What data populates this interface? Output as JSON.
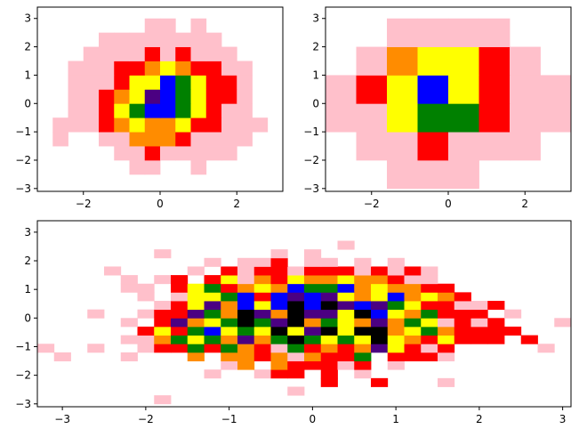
{
  "colors": {
    "map": [
      "#ffffff",
      "#ffc0cb",
      "#ff0000",
      "#ff8c00",
      "#ffff00",
      "#008000",
      "#0000ff",
      "#4b0082",
      "#000000"
    ]
  },
  "chart_data": [
    {
      "type": "heatmap",
      "title": "",
      "xlabel": "",
      "ylabel": "",
      "xlim": [
        -3.2,
        3.2
      ],
      "ylim": [
        -3.1,
        3.4
      ],
      "grid": false,
      "xticks": [
        -2,
        0,
        2
      ],
      "yticks": [
        -3,
        -2,
        -1,
        0,
        1,
        2,
        3
      ],
      "xtick_labels": [
        "−2",
        "0",
        "2"
      ],
      "ytick_labels": [
        "−3",
        "−2",
        "−1",
        "0",
        "1",
        "2",
        "3"
      ],
      "x_edges": [
        -3.2,
        -2.8,
        -2.4,
        -2.0,
        -1.6,
        -1.2,
        -0.8,
        -0.4,
        0.0,
        0.4,
        0.8,
        1.2,
        1.6,
        2.0,
        2.4,
        2.8,
        3.2
      ],
      "y_edges": [
        -3.0,
        -2.5,
        -2.0,
        -1.5,
        -1.0,
        -0.5,
        0.0,
        0.5,
        1.0,
        1.5,
        2.0,
        2.5,
        3.0,
        3.5
      ],
      "levels": [
        [
          0,
          0,
          0,
          0,
          0,
          0,
          0,
          0,
          0,
          0,
          0,
          0,
          0,
          0,
          0,
          0
        ],
        [
          0,
          0,
          0,
          0,
          0,
          0,
          1,
          1,
          0,
          0,
          1,
          0,
          0,
          0,
          0,
          0
        ],
        [
          0,
          0,
          0,
          0,
          0,
          1,
          1,
          2,
          1,
          1,
          1,
          1,
          1,
          0,
          0,
          0
        ],
        [
          0,
          1,
          0,
          0,
          1,
          1,
          3,
          3,
          3,
          2,
          1,
          1,
          1,
          1,
          0,
          0
        ],
        [
          0,
          1,
          1,
          1,
          2,
          3,
          4,
          3,
          3,
          4,
          2,
          2,
          1,
          1,
          1,
          0
        ],
        [
          0,
          0,
          1,
          1,
          2,
          4,
          5,
          6,
          6,
          5,
          4,
          2,
          1,
          1,
          0,
          0
        ],
        [
          0,
          0,
          1,
          1,
          2,
          3,
          4,
          7,
          6,
          5,
          4,
          2,
          2,
          1,
          0,
          0
        ],
        [
          0,
          0,
          1,
          1,
          1,
          2,
          4,
          4,
          6,
          5,
          4,
          2,
          2,
          1,
          0,
          0
        ],
        [
          0,
          0,
          1,
          1,
          1,
          2,
          2,
          3,
          4,
          3,
          2,
          2,
          1,
          1,
          0,
          0
        ],
        [
          0,
          0,
          0,
          1,
          1,
          1,
          1,
          2,
          1,
          2,
          1,
          1,
          1,
          0,
          0,
          0
        ],
        [
          0,
          0,
          0,
          0,
          1,
          1,
          1,
          1,
          1,
          1,
          1,
          1,
          0,
          0,
          0,
          0
        ],
        [
          0,
          0,
          0,
          0,
          0,
          0,
          0,
          1,
          1,
          0,
          1,
          0,
          0,
          0,
          0,
          0
        ],
        [
          0,
          0,
          0,
          0,
          0,
          0,
          0,
          0,
          0,
          0,
          0,
          0,
          0,
          0,
          0,
          0
        ]
      ]
    },
    {
      "type": "heatmap",
      "title": "",
      "xlabel": "",
      "ylabel": "",
      "xlim": [
        -3.2,
        3.2
      ],
      "ylim": [
        -3.1,
        3.4
      ],
      "grid": false,
      "xticks": [
        -2,
        0,
        2
      ],
      "yticks": [
        -3,
        -2,
        -1,
        0,
        1,
        2,
        3
      ],
      "xtick_labels": [
        "−2",
        "0",
        "2"
      ],
      "ytick_labels": [
        "−3",
        "−2",
        "−1",
        "0",
        "1",
        "2",
        "3"
      ],
      "x_edges": [
        -3.2,
        -2.4,
        -1.6,
        -0.8,
        0.0,
        0.8,
        1.6,
        2.4,
        3.2
      ],
      "y_edges": [
        -3.0,
        -2.0,
        -1.0,
        0.0,
        1.0,
        2.0,
        3.0
      ],
      "levels": [
        [
          0,
          0,
          1,
          1,
          1,
          0,
          0,
          0
        ],
        [
          0,
          1,
          1,
          2,
          1,
          1,
          1,
          0
        ],
        [
          1,
          1,
          4,
          5,
          5,
          2,
          1,
          1
        ],
        [
          1,
          2,
          4,
          6,
          4,
          2,
          1,
          1
        ],
        [
          0,
          1,
          3,
          4,
          4,
          2,
          1,
          0
        ],
        [
          0,
          0,
          1,
          1,
          1,
          1,
          0,
          0
        ]
      ]
    },
    {
      "type": "heatmap",
      "title": "",
      "xlabel": "",
      "ylabel": "",
      "xlim": [
        -3.3,
        3.1
      ],
      "ylim": [
        -3.1,
        3.4
      ],
      "grid": false,
      "xticks": [
        -3,
        -2,
        -1,
        0,
        1,
        2,
        3
      ],
      "yticks": [
        -3,
        -2,
        -1,
        0,
        1,
        2,
        3
      ],
      "xtick_labels": [
        "−3",
        "−2",
        "−1",
        "0",
        "1",
        "2",
        "3"
      ],
      "ytick_labels": [
        "−3",
        "−2",
        "−1",
        "0",
        "1",
        "2",
        "3"
      ],
      "x_edges": [
        -3.3,
        -3.1,
        -2.9,
        -2.7,
        -2.5,
        -2.3,
        -2.1,
        -1.9,
        -1.7,
        -1.5,
        -1.3,
        -1.1,
        -0.9,
        -0.7,
        -0.5,
        -0.3,
        -0.1,
        0.1,
        0.3,
        0.5,
        0.7,
        0.9,
        1.1,
        1.3,
        1.5,
        1.7,
        1.9,
        2.1,
        2.3,
        2.5,
        2.7,
        2.9,
        3.1
      ],
      "y_edges": [
        -3.0,
        -2.7,
        -2.4,
        -2.1,
        -1.8,
        -1.5,
        -1.2,
        -0.9,
        -0.6,
        -0.3,
        0.0,
        0.3,
        0.6,
        0.9,
        1.2,
        1.5,
        1.8,
        2.1,
        2.4,
        2.7,
        3.0,
        3.3
      ],
      "levels": [
        [
          0,
          0,
          0,
          0,
          0,
          0,
          0,
          1,
          0,
          0,
          0,
          0,
          0,
          0,
          0,
          0,
          0,
          0,
          0,
          0,
          0,
          0,
          0,
          0,
          0,
          0,
          0,
          0,
          0,
          0,
          0,
          0
        ],
        [
          0,
          0,
          0,
          0,
          0,
          0,
          0,
          0,
          0,
          0,
          0,
          0,
          0,
          0,
          0,
          1,
          0,
          0,
          0,
          0,
          0,
          0,
          0,
          0,
          0,
          0,
          0,
          0,
          0,
          0,
          0,
          0
        ],
        [
          0,
          0,
          0,
          0,
          0,
          0,
          0,
          0,
          0,
          0,
          0,
          0,
          0,
          0,
          0,
          0,
          0,
          2,
          0,
          0,
          2,
          0,
          0,
          0,
          1,
          0,
          0,
          0,
          0,
          0,
          0,
          0
        ],
        [
          0,
          0,
          0,
          0,
          0,
          0,
          0,
          0,
          0,
          0,
          1,
          0,
          0,
          1,
          2,
          2,
          0,
          2,
          0,
          1,
          0,
          0,
          0,
          0,
          0,
          0,
          0,
          0,
          0,
          0,
          0,
          0
        ],
        [
          0,
          0,
          0,
          0,
          0,
          0,
          0,
          0,
          0,
          0,
          0,
          1,
          3,
          0,
          3,
          2,
          2,
          2,
          1,
          2,
          0,
          1,
          0,
          0,
          0,
          0,
          0,
          0,
          0,
          0,
          0,
          0
        ],
        [
          0,
          1,
          0,
          0,
          0,
          1,
          0,
          0,
          0,
          3,
          0,
          3,
          3,
          2,
          3,
          1,
          3,
          2,
          2,
          5,
          0,
          2,
          2,
          2,
          1,
          0,
          0,
          0,
          0,
          0,
          0,
          0
        ],
        [
          1,
          0,
          0,
          1,
          0,
          0,
          1,
          2,
          2,
          5,
          2,
          5,
          3,
          2,
          1,
          5,
          2,
          3,
          2,
          3,
          7,
          4,
          2,
          1,
          2,
          0,
          0,
          0,
          0,
          0,
          1,
          0
        ],
        [
          0,
          0,
          0,
          0,
          0,
          1,
          1,
          3,
          5,
          4,
          5,
          3,
          7,
          3,
          5,
          8,
          5,
          4,
          5,
          4,
          8,
          4,
          3,
          2,
          4,
          2,
          2,
          2,
          0,
          2,
          0,
          0
        ],
        [
          0,
          0,
          0,
          0,
          0,
          0,
          2,
          4,
          2,
          5,
          6,
          4,
          5,
          4,
          8,
          4,
          7,
          8,
          4,
          8,
          8,
          3,
          4,
          5,
          3,
          2,
          2,
          2,
          2,
          0,
          0,
          0
        ],
        [
          0,
          0,
          0,
          0,
          0,
          1,
          0,
          2,
          7,
          3,
          4,
          5,
          8,
          5,
          7,
          8,
          3,
          5,
          4,
          3,
          7,
          3,
          5,
          4,
          1,
          2,
          1,
          2,
          0,
          0,
          0,
          1
        ],
        [
          0,
          0,
          0,
          1,
          0,
          0,
          1,
          2,
          2,
          7,
          5,
          3,
          8,
          7,
          3,
          8,
          7,
          7,
          4,
          8,
          6,
          4,
          3,
          5,
          2,
          2,
          2,
          0,
          1,
          0,
          0,
          0
        ],
        [
          0,
          0,
          0,
          0,
          0,
          0,
          0,
          1,
          2,
          4,
          7,
          3,
          6,
          4,
          6,
          8,
          6,
          8,
          7,
          6,
          7,
          5,
          4,
          2,
          2,
          1,
          1,
          2,
          0,
          0,
          0,
          0
        ],
        [
          0,
          0,
          0,
          0,
          0,
          0,
          1,
          0,
          1,
          4,
          4,
          5,
          6,
          2,
          6,
          7,
          6,
          7,
          4,
          3,
          4,
          6,
          3,
          4,
          3,
          2,
          0,
          0,
          0,
          0,
          0,
          0
        ],
        [
          0,
          0,
          0,
          0,
          0,
          1,
          1,
          0,
          2,
          4,
          5,
          2,
          3,
          4,
          3,
          6,
          5,
          5,
          6,
          3,
          4,
          3,
          3,
          2,
          2,
          0,
          0,
          0,
          0,
          0,
          0,
          0
        ],
        [
          0,
          0,
          0,
          0,
          0,
          1,
          0,
          1,
          2,
          0,
          2,
          4,
          1,
          3,
          2,
          4,
          3,
          3,
          4,
          3,
          3,
          2,
          1,
          1,
          0,
          0,
          0,
          0,
          0,
          0,
          0,
          0
        ],
        [
          0,
          0,
          0,
          0,
          1,
          0,
          0,
          0,
          0,
          1,
          0,
          2,
          1,
          2,
          2,
          1,
          2,
          2,
          2,
          1,
          2,
          1,
          2,
          1,
          0,
          0,
          0,
          0,
          0,
          0,
          0,
          0
        ],
        [
          0,
          0,
          0,
          0,
          0,
          0,
          0,
          0,
          0,
          0,
          1,
          0,
          1,
          1,
          2,
          0,
          1,
          1,
          0,
          1,
          0,
          1,
          0,
          0,
          0,
          0,
          0,
          0,
          0,
          0,
          0,
          0
        ],
        [
          0,
          0,
          0,
          0,
          0,
          0,
          0,
          1,
          0,
          0,
          0,
          0,
          0,
          0,
          1,
          0,
          1,
          0,
          0,
          0,
          0,
          0,
          0,
          0,
          0,
          0,
          0,
          0,
          0,
          0,
          0,
          0
        ],
        [
          0,
          0,
          0,
          0,
          0,
          0,
          0,
          0,
          0,
          0,
          0,
          0,
          0,
          0,
          0,
          0,
          0,
          0,
          1,
          0,
          0,
          0,
          0,
          0,
          0,
          0,
          0,
          0,
          0,
          0,
          0,
          0
        ],
        [
          0,
          0,
          0,
          0,
          0,
          0,
          0,
          0,
          0,
          0,
          0,
          0,
          0,
          0,
          0,
          0,
          0,
          0,
          0,
          0,
          0,
          0,
          0,
          0,
          0,
          0,
          0,
          0,
          0,
          0,
          0,
          0
        ],
        [
          0,
          0,
          0,
          0,
          0,
          0,
          0,
          0,
          0,
          0,
          0,
          0,
          0,
          0,
          0,
          0,
          0,
          0,
          0,
          0,
          0,
          0,
          0,
          0,
          0,
          0,
          0,
          0,
          0,
          0,
          0,
          0
        ]
      ]
    }
  ]
}
